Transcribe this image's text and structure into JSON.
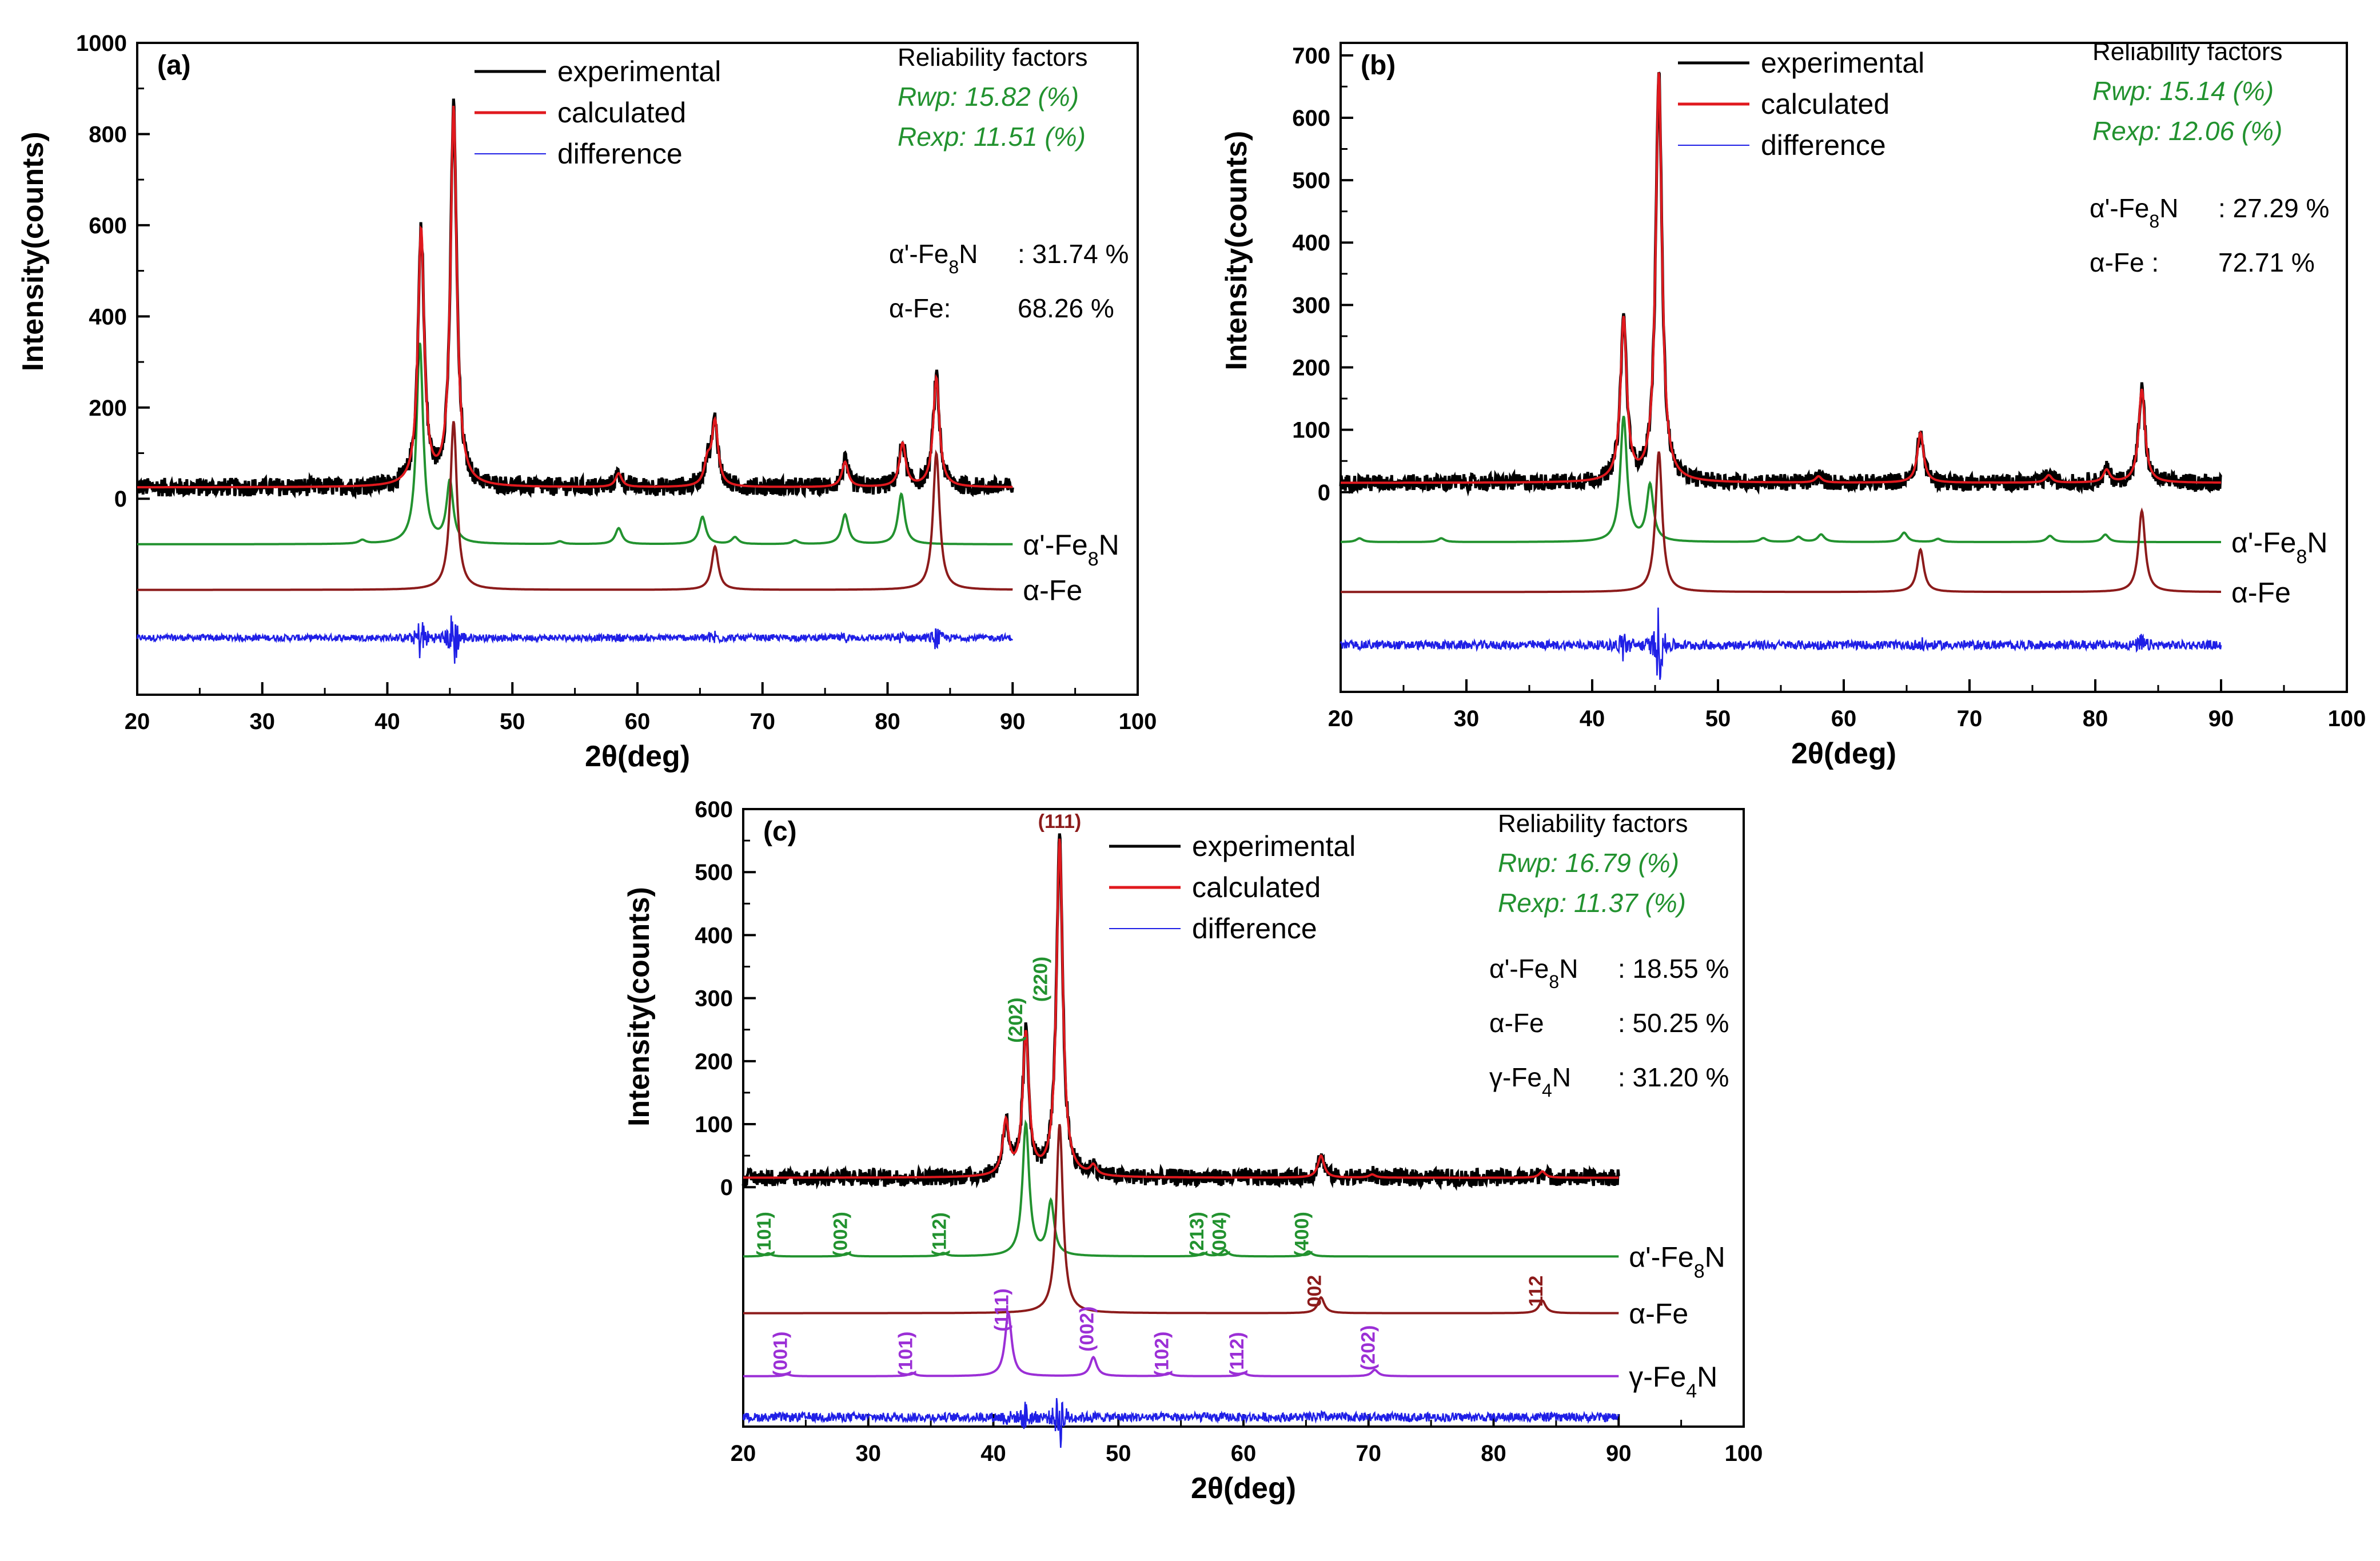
{
  "colors": {
    "experimental": "#000000",
    "calculated": "#e0191e",
    "difference": "#1f1fe6",
    "alpha_prime_fe8n": "#22922f",
    "alpha_fe": "#8c1b1b",
    "gamma_fe4n": "#9b2fd6",
    "reliability": "#22922f"
  },
  "chart_data": [
    {
      "type": "line",
      "panel_label": "(a)",
      "xlabel": "2θ(deg)",
      "ylabel": "Intensity(counts)",
      "xlim": [
        20,
        100
      ],
      "ylim": [
        -430,
        1000
      ],
      "x_ticks": [
        "20",
        "30",
        "40",
        "50",
        "60",
        "70",
        "80",
        "90",
        "100"
      ],
      "y_ticks": [
        "0",
        "200",
        "400",
        "600",
        "800",
        "1000"
      ],
      "legend": [
        "experimental",
        "calculated",
        "difference"
      ],
      "reliability": {
        "title": "Reliability factors",
        "rwp": "Rwp: 15.82 (%)",
        "rexp": "Rexp: 11.51 (%)"
      },
      "phases": [
        {
          "label": "α'-Fe",
          "sub": "8",
          "tail": "N",
          "value": ": 31.74 %"
        },
        {
          "label": "α-Fe:",
          "sub": "",
          "tail": "",
          "value": "68.26 %"
        }
      ],
      "background": 25,
      "observed_peaks": [
        [
          42.7,
          560
        ],
        [
          45.3,
          830
        ],
        [
          58.5,
          30
        ],
        [
          65.6,
          50
        ],
        [
          66.2,
          140
        ],
        [
          76.6,
          55
        ],
        [
          81.2,
          95
        ],
        [
          83.9,
          240
        ]
      ],
      "series": [
        {
          "name": "α'-Fe",
          "sub": "8",
          "tail": "N",
          "offset": -100,
          "color_key": "alpha_prime_fe8n",
          "peaks": [
            [
              38.0,
              8
            ],
            [
              42.6,
              440
            ],
            [
              45.0,
              135
            ],
            [
              53.8,
              6
            ],
            [
              58.5,
              35
            ],
            [
              65.2,
              60
            ],
            [
              67.8,
              15
            ],
            [
              72.6,
              8
            ],
            [
              76.6,
              65
            ],
            [
              81.1,
              110
            ]
          ]
        },
        {
          "name": "α-Fe",
          "sub": "",
          "tail": "",
          "offset": -200,
          "color_key": "alpha_fe",
          "peaks": [
            [
              45.3,
              370
            ],
            [
              66.2,
              95
            ],
            [
              83.9,
              300
            ]
          ]
        }
      ],
      "difference_offset": -305
    },
    {
      "type": "line",
      "panel_label": "(b)",
      "xlabel": "2θ(deg)",
      "ylabel": "Intensity(counts)",
      "xlim": [
        20,
        100
      ],
      "ylim": [
        -320,
        720
      ],
      "x_ticks": [
        "20",
        "30",
        "40",
        "50",
        "60",
        "70",
        "80",
        "90",
        "100"
      ],
      "y_ticks": [
        "0",
        "100",
        "200",
        "300",
        "400",
        "500",
        "600",
        "700"
      ],
      "legend": [
        "experimental",
        "calculated",
        "difference"
      ],
      "reliability": {
        "title": "Reliability factors",
        "rwp": "Rwp: 15.14 (%)",
        "rexp": "Rexp: 12.06 (%)"
      },
      "phases": [
        {
          "label": "α'-Fe",
          "sub": "8",
          "tail": "N",
          "value": ": 27.29 %"
        },
        {
          "label": "α-Fe :",
          "sub": "",
          "tail": "",
          "value": "72.71 %"
        }
      ],
      "background": 15,
      "observed_peaks": [
        [
          42.5,
          260
        ],
        [
          45.3,
          655
        ],
        [
          58.0,
          10
        ],
        [
          66.1,
          80
        ],
        [
          76.3,
          12
        ],
        [
          80.9,
          20
        ],
        [
          83.7,
          150
        ]
      ],
      "series": [
        {
          "name": "α'-Fe",
          "sub": "8",
          "tail": "N",
          "offset": -80,
          "color_key": "alpha_prime_fe8n",
          "peaks": [
            [
              21.5,
              6
            ],
            [
              28.0,
              6
            ],
            [
              42.5,
              200
            ],
            [
              44.6,
              90
            ],
            [
              53.6,
              6
            ],
            [
              56.4,
              8
            ],
            [
              58.2,
              12
            ],
            [
              64.8,
              15
            ],
            [
              67.5,
              5
            ],
            [
              76.4,
              10
            ],
            [
              80.8,
              12
            ]
          ]
        },
        {
          "name": "α-Fe",
          "sub": "",
          "tail": "",
          "offset": -160,
          "color_key": "alpha_fe",
          "peaks": [
            [
              45.3,
              225
            ],
            [
              66.1,
              68
            ],
            [
              83.7,
              130
            ]
          ]
        }
      ],
      "difference_offset": -245
    },
    {
      "type": "line",
      "panel_label": "(c)",
      "xlabel": "2θ(deg)",
      "ylabel": "Intensity(counts)",
      "xlim": [
        20,
        100
      ],
      "ylim": [
        -380,
        600
      ],
      "x_ticks": [
        "20",
        "30",
        "40",
        "50",
        "60",
        "70",
        "80",
        "90",
        "100"
      ],
      "y_ticks": [
        "0",
        "100",
        "200",
        "300",
        "400",
        "500",
        "600"
      ],
      "legend": [
        "experimental",
        "calculated",
        "difference"
      ],
      "reliability": {
        "title": "Reliability factors",
        "rwp": "Rwp: 16.79 (%)",
        "rexp": "Rexp: 11.37 (%)"
      },
      "phases": [
        {
          "label": "α'-Fe",
          "sub": "8",
          "tail": "N",
          "value": ": 18.55 %"
        },
        {
          "label": "α-Fe",
          "sub": "",
          "tail": "",
          "value": ": 50.25 %"
        },
        {
          "label": "γ-Fe",
          "sub": "4",
          "tail": "N",
          "value": ": 31.20 %"
        }
      ],
      "background": 15,
      "observed_peaks": [
        [
          41.0,
          85
        ],
        [
          42.6,
          225
        ],
        [
          45.3,
          535
        ],
        [
          48.0,
          15
        ],
        [
          66.2,
          35
        ],
        [
          70.3,
          5
        ],
        [
          83.9,
          10
        ]
      ],
      "series": [
        {
          "name": "α'-Fe",
          "sub": "8",
          "tail": "N",
          "offset": -110,
          "color_key": "alpha_prime_fe8n",
          "peaks": [
            [
              22.0,
              5
            ],
            [
              28.3,
              5
            ],
            [
              36.0,
              5
            ],
            [
              42.6,
              210
            ],
            [
              44.6,
              85
            ],
            [
              56.8,
              5
            ],
            [
              58.5,
              10
            ],
            [
              65.2,
              8
            ]
          ]
        },
        {
          "name": "α-Fe",
          "sub": "",
          "tail": "",
          "offset": -200,
          "color_key": "alpha_fe",
          "peaks": [
            [
              45.3,
              300
            ],
            [
              66.2,
              25
            ],
            [
              83.9,
              20
            ]
          ]
        },
        {
          "name": "γ-Fe",
          "sub": "4",
          "tail": "N",
          "offset": -300,
          "color_key": "gamma_fe4n",
          "peaks": [
            [
              23.5,
              3
            ],
            [
              33.5,
              5
            ],
            [
              41.2,
              100
            ],
            [
              48.0,
              30
            ],
            [
              54.0,
              5
            ],
            [
              60.0,
              5
            ],
            [
              70.5,
              10
            ]
          ]
        }
      ],
      "difference_offset": -365,
      "hkl_labels": [
        {
          "text": "(111)",
          "x": 45.3,
          "y": 570,
          "color_key": "alpha_fe",
          "rotate": false
        },
        {
          "text": "(202)",
          "x": 42.3,
          "y": 265,
          "color_key": "alpha_prime_fe8n",
          "rotate": true
        },
        {
          "text": "(220)",
          "x": 44.3,
          "y": 330,
          "color_key": "alpha_prime_fe8n",
          "rotate": true
        },
        {
          "text": "(101)",
          "x": 22.2,
          "y": -75,
          "color_key": "alpha_prime_fe8n",
          "rotate": true
        },
        {
          "text": "(002)",
          "x": 28.3,
          "y": -75,
          "color_key": "alpha_prime_fe8n",
          "rotate": true
        },
        {
          "text": "(112)",
          "x": 36.2,
          "y": -75,
          "color_key": "alpha_prime_fe8n",
          "rotate": true
        },
        {
          "text": "(213)",
          "x": 56.8,
          "y": -75,
          "color_key": "alpha_prime_fe8n",
          "rotate": true
        },
        {
          "text": "(004)",
          "x": 58.6,
          "y": -75,
          "color_key": "alpha_prime_fe8n",
          "rotate": true
        },
        {
          "text": "(400)",
          "x": 65.2,
          "y": -75,
          "color_key": "alpha_prime_fe8n",
          "rotate": true
        },
        {
          "text": "002",
          "x": 66.2,
          "y": -165,
          "color_key": "alpha_fe",
          "rotate": true
        },
        {
          "text": "112",
          "x": 83.9,
          "y": -165,
          "color_key": "alpha_fe",
          "rotate": true
        },
        {
          "text": "(111)",
          "x": 41.2,
          "y": -195,
          "color_key": "gamma_fe4n",
          "rotate": true
        },
        {
          "text": "(001)",
          "x": 23.5,
          "y": -265,
          "color_key": "gamma_fe4n",
          "rotate": true
        },
        {
          "text": "(101)",
          "x": 33.5,
          "y": -265,
          "color_key": "gamma_fe4n",
          "rotate": true
        },
        {
          "text": "(002)",
          "x": 48.0,
          "y": -225,
          "color_key": "gamma_fe4n",
          "rotate": true
        },
        {
          "text": "(102)",
          "x": 54.0,
          "y": -265,
          "color_key": "gamma_fe4n",
          "rotate": true
        },
        {
          "text": "(112)",
          "x": 60.0,
          "y": -265,
          "color_key": "gamma_fe4n",
          "rotate": true
        },
        {
          "text": "(202)",
          "x": 70.5,
          "y": -255,
          "color_key": "gamma_fe4n",
          "rotate": true
        }
      ]
    }
  ]
}
